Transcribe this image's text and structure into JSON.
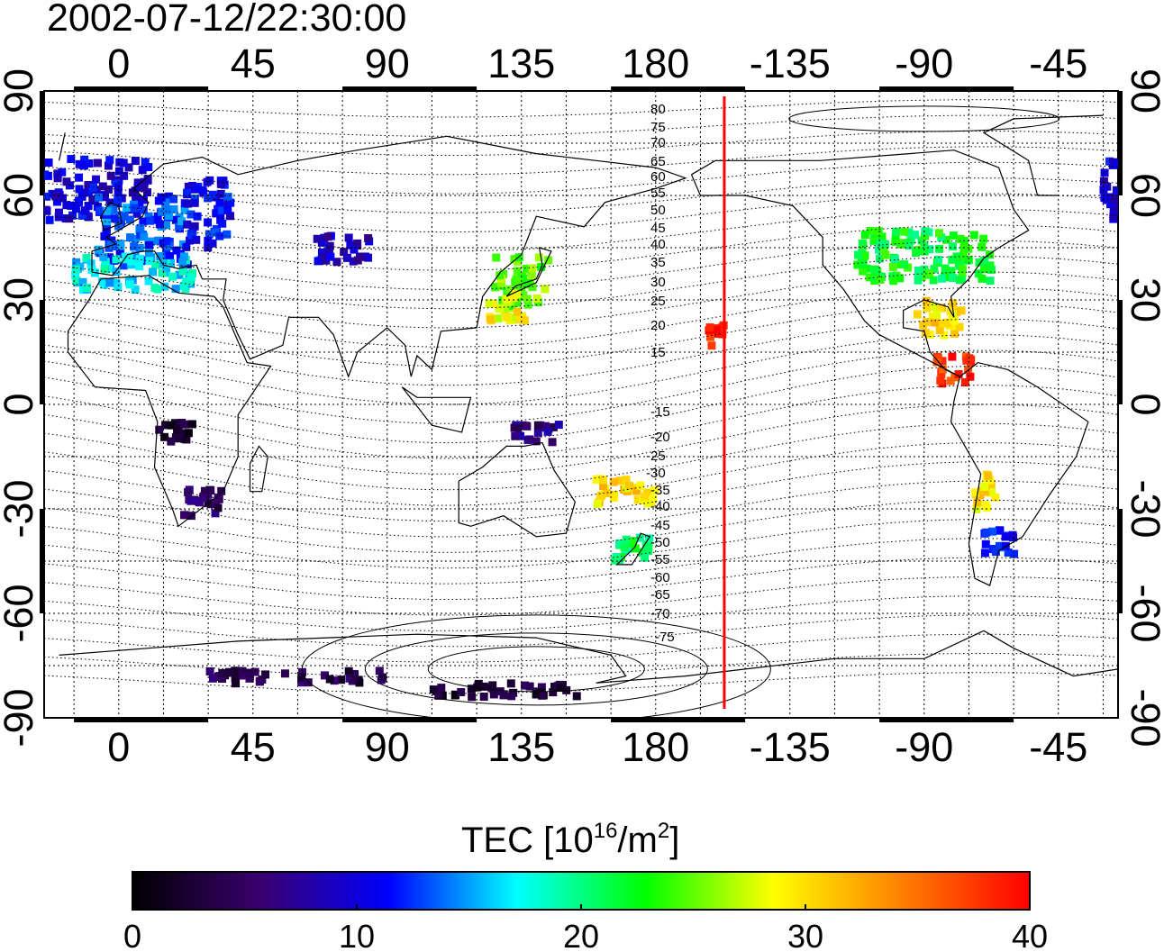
{
  "title": "2002-07-12/22:30:00",
  "map": {
    "lon_ticks": [
      0,
      45,
      90,
      135,
      180,
      -135,
      -90,
      -45
    ],
    "lat_ticks": [
      90,
      60,
      30,
      0,
      -30,
      -60,
      -90
    ],
    "lon_range": [
      -25,
      335
    ],
    "lat_range": [
      -90,
      90
    ],
    "meridian_marker_lon": -157,
    "meridian_marker_color": "#ff0000",
    "mlat_labels_north": [
      "80",
      "75",
      "70",
      "65",
      "60",
      "55",
      "50",
      "45",
      "40",
      "35",
      "30",
      "25",
      "20",
      "15"
    ],
    "mlat_labels_south": [
      "-15",
      "-20",
      "-25",
      "-30",
      "-35",
      "-40",
      "-45",
      "-50",
      "-55",
      "-60",
      "-65",
      "-70",
      "-75"
    ]
  },
  "colorbar": {
    "title_main": "TEC  [10",
    "title_exp1": "16",
    "title_mid": "/m",
    "title_exp2": "2",
    "title_end": "]",
    "ticks": [
      "0",
      "10",
      "20",
      "30",
      "40"
    ],
    "min": 0,
    "max": 40,
    "colors": [
      "#000000",
      "#3a0070",
      "#0000ff",
      "#00ffff",
      "#00ff00",
      "#ffff00",
      "#ff8000",
      "#ff0000"
    ]
  },
  "tec_patches": [
    {
      "lon": -10,
      "lat": 62,
      "w": 40,
      "h": 18,
      "value": 10
    },
    {
      "lon": 8,
      "lat": 50,
      "w": 30,
      "h": 20,
      "value": 13
    },
    {
      "lon": 5,
      "lat": 38,
      "w": 40,
      "h": 10,
      "value": 17
    },
    {
      "lon": 30,
      "lat": 55,
      "w": 15,
      "h": 20,
      "value": 11
    },
    {
      "lon": 75,
      "lat": 45,
      "w": 18,
      "h": 8,
      "value": 9
    },
    {
      "lon": 135,
      "lat": 35,
      "w": 18,
      "h": 15,
      "value": 25
    },
    {
      "lon": 130,
      "lat": 28,
      "w": 12,
      "h": 8,
      "value": 29
    },
    {
      "lon": -160,
      "lat": 20,
      "w": 6,
      "h": 6,
      "value": 39
    },
    {
      "lon": -90,
      "lat": 43,
      "w": 45,
      "h": 15,
      "value": 22
    },
    {
      "lon": -85,
      "lat": 25,
      "w": 15,
      "h": 10,
      "value": 30
    },
    {
      "lon": -80,
      "lat": 10,
      "w": 12,
      "h": 8,
      "value": 38
    },
    {
      "lon": -70,
      "lat": -25,
      "w": 8,
      "h": 10,
      "value": 30
    },
    {
      "lon": -65,
      "lat": -40,
      "w": 10,
      "h": 8,
      "value": 12
    },
    {
      "lon": 170,
      "lat": -25,
      "w": 20,
      "h": 8,
      "value": 30
    },
    {
      "lon": 172,
      "lat": -42,
      "w": 12,
      "h": 8,
      "value": 21
    },
    {
      "lon": 28,
      "lat": -28,
      "w": 14,
      "h": 8,
      "value": 5
    },
    {
      "lon": 60,
      "lat": -78,
      "w": 60,
      "h": 4,
      "value": 4
    },
    {
      "lon": 130,
      "lat": -82,
      "w": 50,
      "h": 4,
      "value": 3
    },
    {
      "lon": 20,
      "lat": -8,
      "w": 14,
      "h": 6,
      "value": 2
    },
    {
      "lon": 140,
      "lat": -8,
      "w": 16,
      "h": 6,
      "value": 6
    }
  ]
}
